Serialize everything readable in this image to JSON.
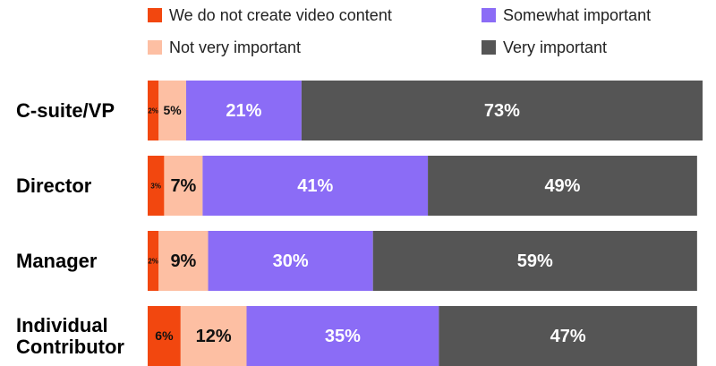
{
  "chart_data": {
    "type": "bar",
    "orientation": "horizontal",
    "stacked": true,
    "categories": [
      "C-suite/VP",
      "Director",
      "Manager",
      "Individual Contributor"
    ],
    "series": [
      {
        "name": "We do not create video content",
        "color": "#f2470f",
        "values": [
          2,
          3,
          2,
          6
        ],
        "value_labels": [
          "2%",
          "3%",
          "2%",
          "6%"
        ]
      },
      {
        "name": "Not very important",
        "color": "#fdbfa3",
        "values": [
          5,
          7,
          9,
          12
        ],
        "value_labels": [
          "5%",
          "7%",
          "9%",
          "12%"
        ]
      },
      {
        "name": "Somewhat important",
        "color": "#8b6cf6",
        "values": [
          21,
          41,
          30,
          35
        ],
        "value_labels": [
          "21%",
          "41%",
          "30%",
          "35%"
        ]
      },
      {
        "name": "Very important",
        "color": "#555555",
        "values": [
          73,
          49,
          59,
          47
        ],
        "value_labels": [
          "73%",
          "49%",
          "59%",
          "47%"
        ]
      }
    ]
  }
}
